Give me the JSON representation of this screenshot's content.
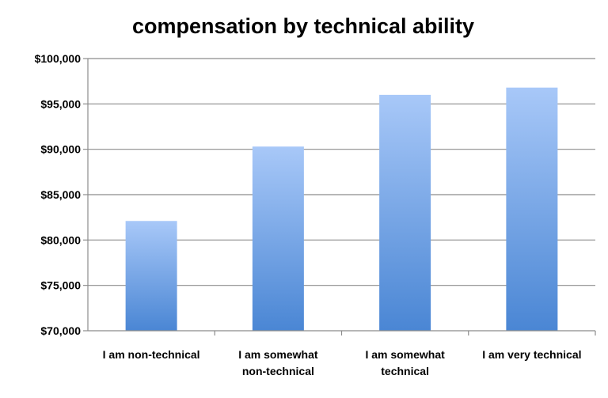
{
  "chart_data": {
    "type": "bar",
    "title": "compensation by technical ability",
    "xlabel": "",
    "ylabel": "",
    "categories": [
      [
        "I am non-technical"
      ],
      [
        "I am somewhat",
        "non-technical"
      ],
      [
        "I am somewhat",
        "technical"
      ],
      [
        "I am very technical"
      ]
    ],
    "values": [
      82100,
      90300,
      96000,
      96800
    ],
    "ylim": [
      70000,
      100000
    ],
    "ytick_step": 5000,
    "ytick_labels": [
      "$70,000",
      "$75,000",
      "$80,000",
      "$85,000",
      "$90,000",
      "$95,000",
      "$100,000"
    ],
    "grid": true,
    "legend": "none",
    "colors": {
      "bar_top": "#a8c8f8",
      "bar_bottom": "#4a86d4",
      "grid": "#8c8c8c",
      "axis": "#8c8c8c"
    }
  }
}
